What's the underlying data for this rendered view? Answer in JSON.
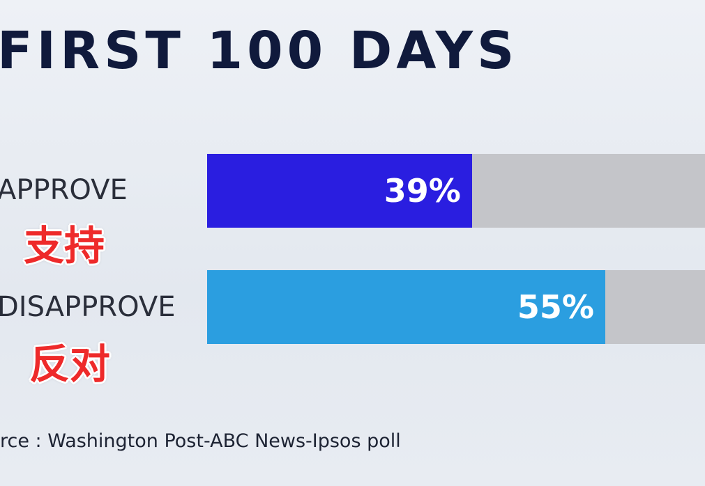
{
  "chart_data": {
    "type": "bar",
    "orientation": "horizontal",
    "title": "FIRST 100 DAYS",
    "categories": [
      "APPROVE",
      "DISAPPROVE"
    ],
    "category_labels_zh": [
      "支持",
      "反对"
    ],
    "values": [
      39,
      55
    ],
    "value_labels": [
      "39%",
      "55%"
    ],
    "xlim": [
      0,
      100
    ],
    "colors": [
      "#2a1ee0",
      "#2b9ee0"
    ],
    "track_color": "#c4c5c9",
    "grid": false,
    "source": "rce : Washington Post-ABC News-Ipsos poll"
  }
}
